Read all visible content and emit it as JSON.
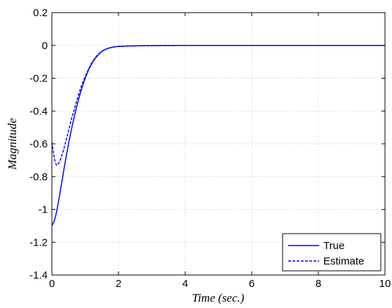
{
  "chart_data": {
    "type": "line",
    "title": "",
    "xlabel": "Time (sec.)",
    "ylabel": "Magnitude",
    "xlim": [
      0,
      10
    ],
    "ylim": [
      -1.4,
      0.2
    ],
    "xticks": [
      0,
      2,
      4,
      6,
      8,
      10
    ],
    "yticks": [
      -1.4,
      -1.2,
      -1,
      -0.8,
      -0.6,
      -0.4,
      -0.2,
      0,
      0.2
    ],
    "grid": true,
    "legend_position": "bottom-right",
    "series": [
      {
        "name": "True",
        "color": "#0000ff",
        "style": "solid",
        "x": [
          0,
          0.1,
          0.2,
          0.3,
          0.4,
          0.5,
          0.6,
          0.7,
          0.8,
          0.9,
          1.0,
          1.1,
          1.2,
          1.3,
          1.4,
          1.5,
          1.6,
          1.7,
          1.8,
          1.9,
          2.0,
          2.2,
          2.4,
          2.6,
          2.8,
          3.0,
          3.5,
          4.0,
          5.0,
          6.0,
          7.0,
          8.0,
          9.0,
          10.0
        ],
        "y": [
          -1.1,
          -1.05,
          -0.95,
          -0.83,
          -0.71,
          -0.6,
          -0.5,
          -0.41,
          -0.33,
          -0.26,
          -0.2,
          -0.15,
          -0.11,
          -0.08,
          -0.055,
          -0.037,
          -0.025,
          -0.017,
          -0.012,
          -0.008,
          -0.006,
          -0.004,
          -0.003,
          -0.002,
          -0.0015,
          -0.001,
          -0.0005,
          0,
          0,
          0,
          0,
          0,
          0,
          0
        ]
      },
      {
        "name": "Estimate",
        "color": "#0000ff",
        "style": "dashed",
        "x": [
          0,
          0.05,
          0.1,
          0.15,
          0.2,
          0.25,
          0.3,
          0.4,
          0.5,
          0.6,
          0.7,
          0.8,
          0.9,
          1.0,
          1.1,
          1.2,
          1.3,
          1.4,
          1.5,
          1.6,
          1.7,
          1.8,
          1.9,
          2.0,
          2.2,
          2.4,
          2.6,
          2.8,
          3.0,
          3.5,
          4.0,
          5.0,
          6.0,
          7.0,
          8.0,
          9.0,
          10.0
        ],
        "y": [
          -0.59,
          -0.66,
          -0.71,
          -0.73,
          -0.72,
          -0.7,
          -0.67,
          -0.6,
          -0.52,
          -0.44,
          -0.37,
          -0.3,
          -0.24,
          -0.19,
          -0.145,
          -0.105,
          -0.075,
          -0.052,
          -0.036,
          -0.025,
          -0.017,
          -0.012,
          -0.008,
          -0.006,
          -0.004,
          -0.003,
          -0.002,
          -0.0015,
          -0.001,
          -0.0005,
          0,
          0,
          0,
          0,
          0,
          0,
          0
        ]
      }
    ]
  }
}
